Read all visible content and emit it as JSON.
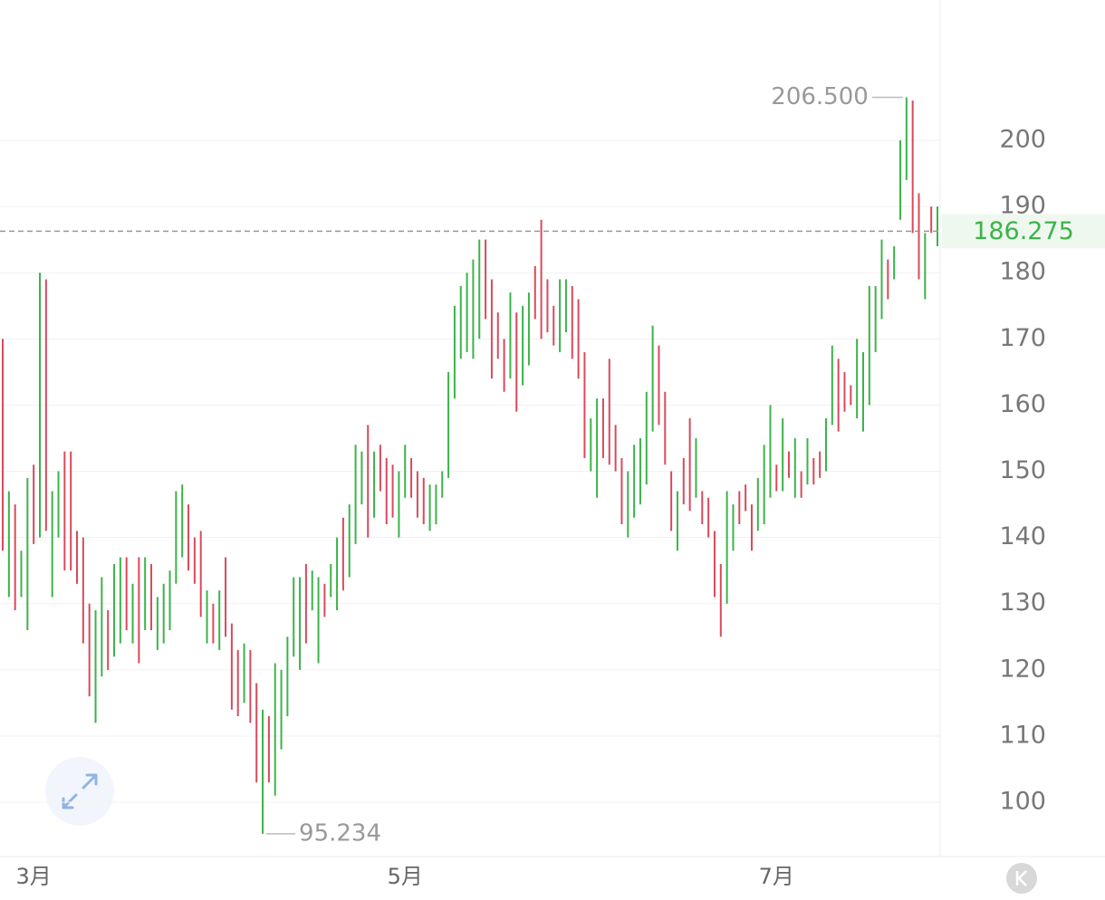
{
  "chart_data": {
    "type": "range-bar",
    "high": [
      170,
      147,
      145,
      138,
      149,
      151,
      180,
      179,
      147,
      150,
      153,
      153,
      141,
      140,
      130,
      129,
      134,
      129,
      136,
      137,
      137,
      133,
      137,
      137,
      136,
      131,
      133,
      135,
      147,
      148,
      145,
      140,
      141,
      132,
      130,
      132,
      137,
      127,
      123,
      124,
      123,
      118,
      114,
      113,
      121,
      120,
      125,
      134,
      134,
      136,
      135,
      134,
      133,
      136,
      140,
      143,
      145,
      154,
      153,
      157,
      153,
      154,
      152,
      151,
      150,
      154,
      152,
      150,
      149,
      148,
      148,
      150,
      165,
      175,
      178,
      180,
      182,
      185,
      185,
      179,
      174,
      170,
      177,
      174,
      175,
      177,
      181,
      188,
      179,
      175,
      179,
      179,
      178,
      176,
      168,
      158,
      161,
      161,
      167,
      157,
      152,
      150,
      154,
      155,
      162,
      172,
      169,
      162,
      150,
      147,
      152,
      158,
      155,
      147,
      146,
      141,
      136,
      147,
      145,
      147,
      148,
      145,
      149,
      154,
      160,
      151,
      158,
      153,
      155,
      150,
      155,
      152,
      153,
      158,
      169,
      167,
      165,
      163,
      170,
      168,
      178,
      178,
      185,
      182,
      184,
      200,
      206.5,
      206,
      192,
      186,
      190,
      190
    ],
    "low": [
      138,
      131,
      129,
      131,
      126,
      139,
      140,
      141,
      131,
      140,
      135,
      135,
      133,
      124,
      116,
      112,
      119,
      120,
      122,
      124,
      126,
      124,
      121,
      126,
      126,
      123,
      124,
      126,
      133,
      137,
      135,
      133,
      128,
      124,
      124,
      123,
      125,
      114,
      113,
      115,
      112,
      103,
      95.234,
      103,
      101,
      108,
      113,
      122,
      120,
      124,
      129,
      121,
      128,
      131,
      129,
      132,
      134,
      139,
      145,
      140,
      143,
      147,
      142,
      143,
      140,
      146,
      146,
      143,
      142,
      141,
      142,
      146,
      149,
      161,
      167,
      168,
      167,
      170,
      173,
      164,
      167,
      162,
      164,
      159,
      163,
      166,
      173,
      170,
      171,
      169,
      168,
      171,
      167,
      164,
      152,
      150,
      146,
      152,
      151,
      150,
      142,
      140,
      143,
      145,
      148,
      156,
      157,
      151,
      141,
      138,
      145,
      144,
      146,
      142,
      140,
      131,
      125,
      130,
      138,
      142,
      144,
      138,
      141,
      142,
      146,
      147,
      147,
      149,
      146,
      146,
      148,
      148,
      149,
      150,
      157,
      156,
      159,
      160,
      158,
      156,
      160,
      168,
      173,
      176,
      179,
      188,
      194,
      186,
      179,
      176,
      186,
      184
    ],
    "rising": [
      0,
      1,
      0,
      1,
      1,
      0,
      1,
      0,
      1,
      1,
      0,
      0,
      0,
      0,
      0,
      1,
      1,
      0,
      1,
      1,
      0,
      1,
      0,
      1,
      0,
      1,
      1,
      1,
      1,
      1,
      0,
      0,
      0,
      1,
      0,
      1,
      0,
      0,
      0,
      1,
      0,
      0,
      1,
      0,
      1,
      1,
      1,
      1,
      1,
      0,
      1,
      1,
      0,
      1,
      1,
      0,
      1,
      1,
      1,
      0,
      1,
      0,
      0,
      0,
      1,
      1,
      0,
      0,
      0,
      1,
      1,
      1,
      1,
      1,
      1,
      1,
      1,
      1,
      0,
      0,
      0,
      0,
      1,
      0,
      1,
      1,
      0,
      0,
      0,
      0,
      1,
      1,
      0,
      0,
      0,
      1,
      1,
      0,
      0,
      0,
      0,
      1,
      1,
      1,
      1,
      1,
      0,
      0,
      0,
      1,
      0,
      0,
      1,
      0,
      0,
      0,
      0,
      1,
      1,
      0,
      0,
      0,
      1,
      1,
      1,
      0,
      1,
      0,
      1,
      0,
      1,
      0,
      0,
      1,
      1,
      0,
      0,
      0,
      1,
      1,
      1,
      1,
      1,
      0,
      1,
      1,
      1,
      0,
      0,
      1,
      0,
      1
    ],
    "up_color": "#3cb34a",
    "down_color": "#d84a5c",
    "xticks": [
      {
        "value": 5,
        "label": "3月"
      },
      {
        "value": 65,
        "label": "5月"
      },
      {
        "value": 125,
        "label": "7月"
      }
    ],
    "ylim": [
      91.8,
      221.2
    ],
    "yticks": [
      100,
      110,
      120,
      130,
      140,
      150,
      160,
      170,
      180,
      190,
      200
    ],
    "grid": true,
    "max_label": {
      "value": 206.5,
      "label": "206.500"
    },
    "min_label": 95.234,
    "last_price": {
      "value": 186.275,
      "label": "186.275"
    }
  }
}
